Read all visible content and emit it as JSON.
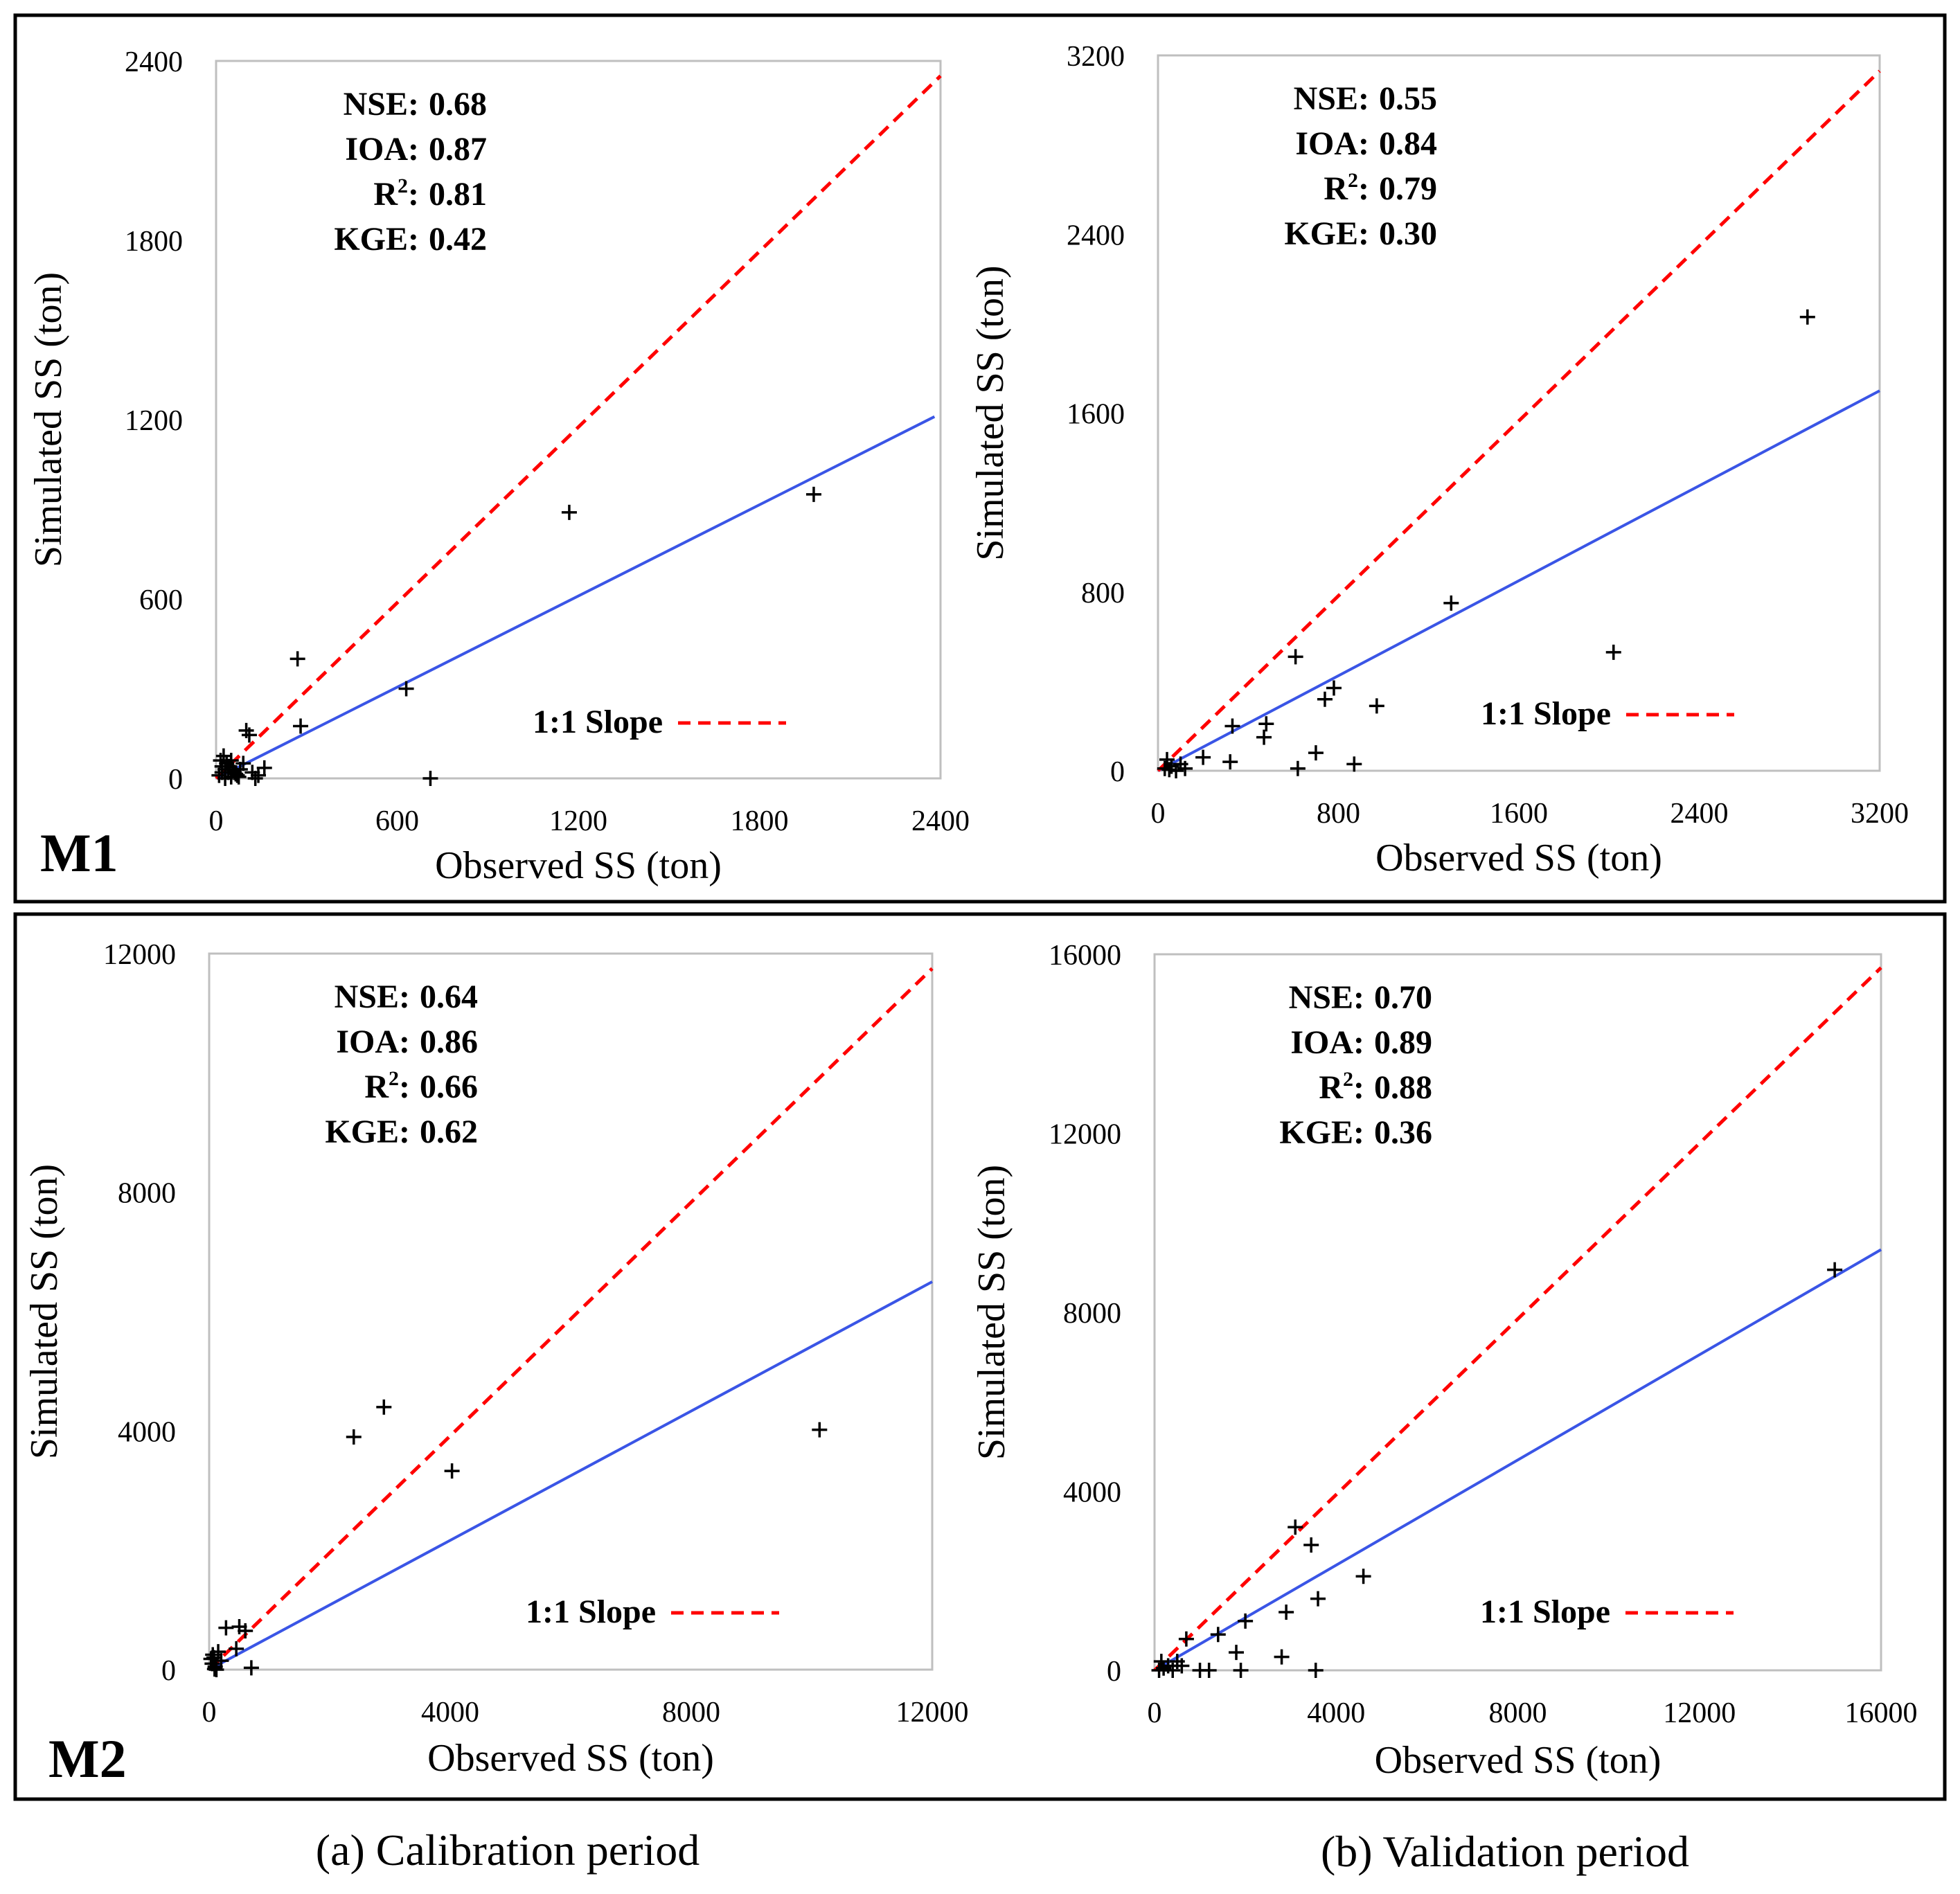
{
  "rows": [
    {
      "label": "M1"
    },
    {
      "label": "M2"
    }
  ],
  "captions": [
    "(a) Calibration period",
    "(b) Validation period"
  ],
  "colors": {
    "one_to_one": "#ff0000",
    "regression": "#3a55e6",
    "points": "#000000",
    "frame": "#000000",
    "plot_border": "#bfbfbf"
  },
  "chart_data": [
    {
      "id": "m1-calibration",
      "type": "scatter",
      "xlabel": "Observed SS (ton)",
      "ylabel": "Simulated SS (ton)",
      "xlim": [
        0,
        2400
      ],
      "ylim": [
        0,
        2400
      ],
      "xticks": [
        0,
        600,
        1200,
        1800,
        2400
      ],
      "yticks": [
        0,
        600,
        1200,
        1800,
        2400
      ],
      "stats": [
        {
          "key": "NSE",
          "sup": "",
          "value": "0.68"
        },
        {
          "key": "IOA",
          "sup": "",
          "value": "0.87"
        },
        {
          "key": "R",
          "sup": "2",
          "value": "0.81"
        },
        {
          "key": "KGE",
          "sup": "",
          "value": "0.42"
        }
      ],
      "legend": {
        "label": "1:1 Slope"
      },
      "one_to_one": {
        "x": [
          0,
          2400
        ],
        "y": [
          0,
          2350
        ]
      },
      "regression": {
        "x": [
          0,
          2380
        ],
        "y": [
          0,
          1210
        ]
      },
      "points": {
        "x": [
          1980,
          1170,
          270,
          630,
          710,
          280,
          100,
          110,
          160,
          10,
          20,
          30,
          40,
          50,
          60,
          70,
          80,
          90,
          120,
          130,
          140,
          15,
          25,
          35,
          45,
          55,
          65,
          75,
          30,
          50,
          20,
          40
        ],
        "y": [
          950,
          890,
          400,
          300,
          0,
          175,
          160,
          145,
          35,
          10,
          20,
          30,
          40,
          60,
          20,
          10,
          30,
          50,
          20,
          0,
          10,
          60,
          75,
          50,
          40,
          30,
          15,
          5,
          0,
          5,
          40,
          20
        ]
      }
    },
    {
      "id": "m1-validation",
      "type": "scatter",
      "xlabel": "Observed SS (ton)",
      "ylabel": "Simulated SS (ton)",
      "xlim": [
        0,
        3200
      ],
      "ylim": [
        0,
        3200
      ],
      "xticks": [
        0,
        800,
        1600,
        2400,
        3200
      ],
      "yticks": [
        0,
        800,
        1600,
        2400,
        3200
      ],
      "stats": [
        {
          "key": "NSE",
          "sup": "",
          "value": "0.55"
        },
        {
          "key": "IOA",
          "sup": "",
          "value": "0.84"
        },
        {
          "key": "R",
          "sup": "2",
          "value": "0.79"
        },
        {
          "key": "KGE",
          "sup": "",
          "value": "0.30"
        }
      ],
      "legend": {
        "label": "1:1 Slope"
      },
      "one_to_one": {
        "x": [
          0,
          3200
        ],
        "y": [
          0,
          3130
        ]
      },
      "regression": {
        "x": [
          0,
          3200
        ],
        "y": [
          0,
          1700
        ]
      },
      "points": {
        "x": [
          2880,
          1300,
          2020,
          610,
          780,
          740,
          970,
          480,
          330,
          470,
          320,
          700,
          870,
          620,
          200,
          60,
          80,
          100,
          120,
          40,
          50,
          30
        ],
        "y": [
          2030,
          750,
          530,
          510,
          370,
          320,
          290,
          210,
          200,
          150,
          40,
          80,
          30,
          10,
          60,
          20,
          0,
          30,
          10,
          50,
          5,
          10
        ]
      }
    },
    {
      "id": "m2-calibration",
      "type": "scatter",
      "xlabel": "Observed SS (ton)",
      "ylabel": "Simulated SS (ton)",
      "xlim": [
        0,
        12000
      ],
      "ylim": [
        0,
        12000
      ],
      "xticks": [
        0,
        4000,
        8000,
        12000
      ],
      "yticks": [
        0,
        4000,
        8000,
        12000
      ],
      "stats": [
        {
          "key": "NSE",
          "sup": "",
          "value": "0.64"
        },
        {
          "key": "IOA",
          "sup": "",
          "value": "0.86"
        },
        {
          "key": "R",
          "sup": "2",
          "value": "0.66"
        },
        {
          "key": "KGE",
          "sup": "",
          "value": "0.62"
        }
      ],
      "legend": {
        "label": "1:1 Slope"
      },
      "one_to_one": {
        "x": [
          0,
          12000
        ],
        "y": [
          0,
          11750
        ]
      },
      "regression": {
        "x": [
          0,
          12000
        ],
        "y": [
          0,
          6500
        ]
      },
      "points": {
        "x": [
          10130,
          2900,
          2400,
          4030,
          280,
          500,
          600,
          450,
          700,
          50,
          80,
          100,
          150,
          200,
          120,
          60,
          90,
          30
        ],
        "y": [
          4020,
          4400,
          3900,
          3330,
          700,
          720,
          650,
          350,
          30,
          100,
          200,
          50,
          300,
          150,
          0,
          250,
          10,
          180
        ]
      }
    },
    {
      "id": "m2-validation",
      "type": "scatter",
      "xlabel": "Observed SS (ton)",
      "ylabel": "Simulated SS (ton)",
      "xlim": [
        0,
        16000
      ],
      "ylim": [
        0,
        16000
      ],
      "xticks": [
        0,
        4000,
        8000,
        12000,
        16000
      ],
      "yticks": [
        0,
        4000,
        8000,
        12000,
        16000
      ],
      "stats": [
        {
          "key": "NSE",
          "sup": "",
          "value": "0.70"
        },
        {
          "key": "IOA",
          "sup": "",
          "value": "0.89"
        },
        {
          "key": "R",
          "sup": "2",
          "value": "0.88"
        },
        {
          "key": "KGE",
          "sup": "",
          "value": "0.36"
        }
      ],
      "legend": {
        "label": "1:1 Slope"
      },
      "one_to_one": {
        "x": [
          0,
          16000
        ],
        "y": [
          0,
          15700
        ]
      },
      "regression": {
        "x": [
          0,
          16000
        ],
        "y": [
          0,
          9400
        ]
      },
      "points": {
        "x": [
          14980,
          3100,
          3450,
          4600,
          3600,
          2900,
          2800,
          3550,
          2000,
          1400,
          1800,
          700,
          1900,
          1000,
          1200,
          500,
          300,
          200,
          100,
          150,
          400,
          600
        ],
        "y": [
          8950,
          3200,
          2800,
          2100,
          1600,
          1300,
          300,
          0,
          1100,
          800,
          400,
          700,
          0,
          0,
          0,
          200,
          100,
          50,
          0,
          200,
          0,
          100
        ]
      }
    }
  ]
}
